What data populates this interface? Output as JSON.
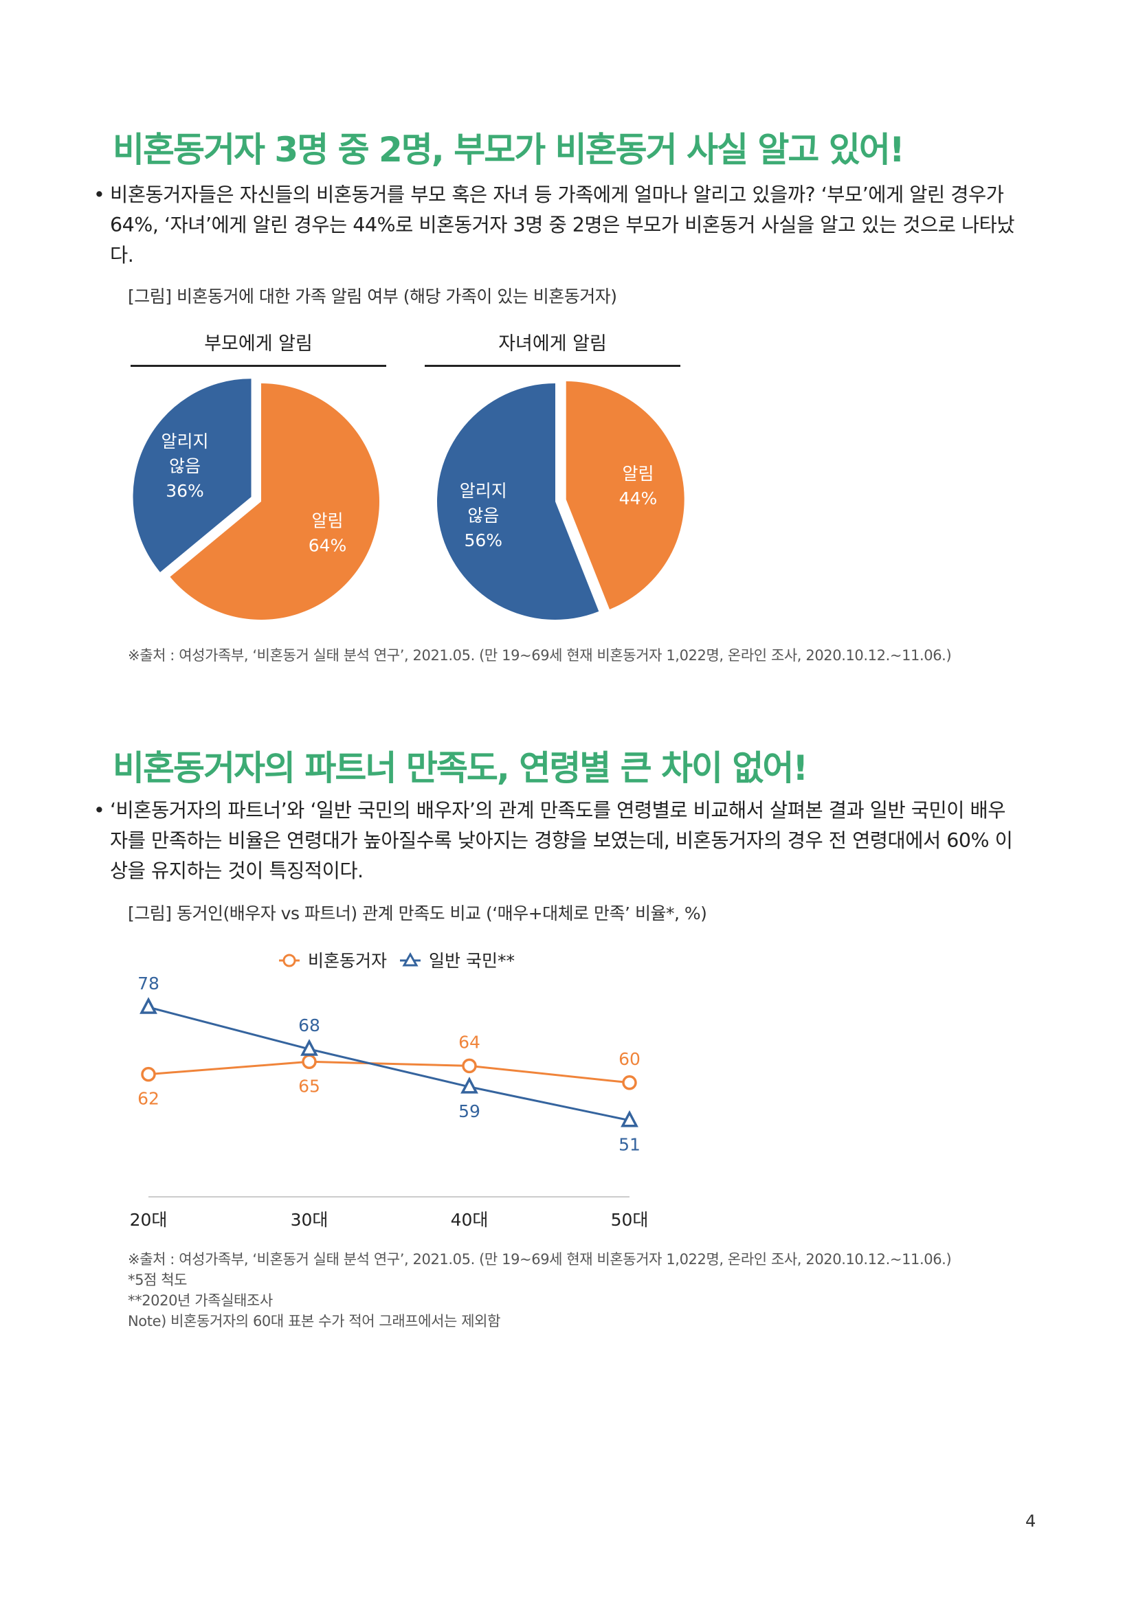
{
  "section1": {
    "title": "비혼동거자 3명 중 2명, 부모가 비혼동거 사실 알고 있어!",
    "bullet_marker": "•",
    "paragraph_lines": [
      "비혼동거자들은 자신들의 비혼동거를 부모 혹은 자녀 등 가족에게 얼마나 알리고 있을까? ‘부모’에게 알린 경우가",
      "64%, ‘자녀’에게 알린 경우는 44%로 비혼동거자 3명 중 2명은 부모가 비혼동거 사실을 알고 있는 것으로 나타났",
      "다."
    ],
    "figure_caption": "[그림] 비혼동거에 대한 가족 알림 여부 (해당 가족이 있는 비혼동거자)",
    "source": "※출처 : 여성가족부, ‘비혼동거 실태 분석 연구’, 2021.05. (만 19~69세 현재 비혼동거자 1,022명, 온라인 조사, 2020.10.12.~11.06.)"
  },
  "section2": {
    "title": "비혼동거자의 파트너 만족도, 연령별 큰 차이 없어!",
    "bullet_marker": "•",
    "paragraph_lines": [
      "‘비혼동거자의 파트너’와 ‘일반 국민의 배우자’의 관계 만족도를 연령별로 비교해서 살펴본 결과 일반 국민이 배우",
      "자를 만족하는 비율은 연령대가 높아질수록 낮아지는 경향을 보였는데, 비혼동거자의 경우 전 연령대에서 60% 이",
      "상을 유지하는 것이 특징적이다."
    ],
    "figure_caption": "[그림] 동거인(배우자 vs 파트너) 관계 만족도 비교 (‘매우+대체로 만족’ 비율*, %)",
    "notes": [
      "※출처 : 여성가족부, ‘비혼동거 실태 분석 연구’, 2021.05. (만 19~69세 현재 비혼동거자 1,022명, 온라인 조사, 2020.10.12.~11.06.)",
      "*5점 척도",
      "**2020년 가족실태조사",
      "Note) 비혼동거자의 60대 표본 수가 적어 그래프에서는 제외함"
    ]
  },
  "page_number": "4",
  "colors": {
    "orange": "#f0843a",
    "blue": "#35649e",
    "green": "#3dab74"
  },
  "chart_data": [
    {
      "type": "pie",
      "title": "부모에게 알림",
      "slices": [
        {
          "label_lines": [
            "알림"
          ],
          "value": 64,
          "value_label": "64%",
          "color": "#f0843a"
        },
        {
          "label_lines": [
            "알리지",
            "않음"
          ],
          "value": 36,
          "value_label": "36%",
          "color": "#35649e"
        }
      ]
    },
    {
      "type": "pie",
      "title": "자녀에게 알림",
      "slices": [
        {
          "label_lines": [
            "알림"
          ],
          "value": 44,
          "value_label": "44%",
          "color": "#f0843a"
        },
        {
          "label_lines": [
            "알리지",
            "않음"
          ],
          "value": 56,
          "value_label": "56%",
          "color": "#35649e"
        }
      ]
    },
    {
      "type": "line",
      "categories": [
        "20대",
        "30대",
        "40대",
        "50대"
      ],
      "series": [
        {
          "name": "비혼동거자",
          "values": [
            62,
            65,
            64,
            60
          ],
          "color": "#f0843a",
          "marker": "circle"
        },
        {
          "name": "일반 국민**",
          "values": [
            78,
            68,
            59,
            51
          ],
          "color": "#35649e",
          "marker": "triangle"
        }
      ],
      "legend_position": "top",
      "grid": false
    }
  ]
}
